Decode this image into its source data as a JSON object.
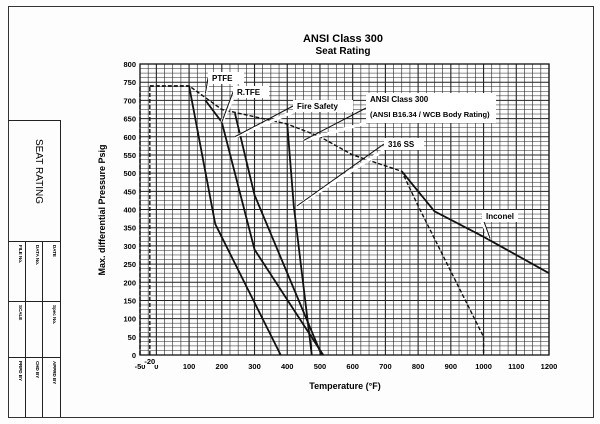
{
  "title_block": {
    "title": "SEAT RATING",
    "fields": [
      "DATE",
      "DATA No.",
      "FILE No.",
      "Spec No.",
      "SCALE",
      "APPRD BY",
      "CHD BY",
      "PRPD BY"
    ]
  },
  "chart_data": {
    "type": "line",
    "title": "ANSI Class 300",
    "subtitle": "Seat Rating",
    "xlabel": "Temperature (°F)",
    "ylabel": "Max. differential Pressure Psig",
    "xlim": [
      -50,
      1200
    ],
    "ylim": [
      0,
      800
    ],
    "xticks": [
      -50,
      0,
      100,
      200,
      300,
      400,
      500,
      600,
      700,
      800,
      900,
      1000,
      1100,
      1200
    ],
    "yticks": [
      0,
      50,
      100,
      150,
      200,
      250,
      300,
      350,
      400,
      450,
      500,
      550,
      600,
      650,
      700,
      750,
      800
    ],
    "grid": true,
    "extra_tick_label": "-20",
    "series": [
      {
        "name": "PTFE",
        "style": "solid",
        "points": [
          [
            100,
            740
          ],
          [
            180,
            360
          ],
          [
            380,
            0
          ]
        ]
      },
      {
        "name": "R.TFE",
        "style": "solid",
        "points": [
          [
            150,
            700
          ],
          [
            200,
            640
          ],
          [
            300,
            290
          ],
          [
            510,
            0
          ]
        ]
      },
      {
        "name": "Fire Safety",
        "style": "solid",
        "points": [
          [
            240,
            665
          ],
          [
            300,
            440
          ],
          [
            505,
            0
          ]
        ]
      },
      {
        "name": "316 SS",
        "style": "solid",
        "points": [
          [
            400,
            635
          ],
          [
            420,
            410
          ],
          [
            475,
            0
          ]
        ]
      },
      {
        "name": "ANSI Class 300",
        "label2": "(ANSI B16.34 / WCB Body Rating)",
        "style": "dashed",
        "points": [
          [
            -20,
            740
          ],
          [
            100,
            740
          ],
          [
            200,
            675
          ],
          [
            300,
            655
          ],
          [
            400,
            635
          ],
          [
            500,
            600
          ],
          [
            600,
            550
          ],
          [
            650,
            535
          ],
          [
            700,
            520
          ],
          [
            750,
            505
          ],
          [
            800,
            410
          ],
          [
            850,
            320
          ],
          [
            900,
            230
          ],
          [
            950,
            140
          ],
          [
            1000,
            50
          ],
          [
            1000,
            0
          ]
        ]
      },
      {
        "name": "Inconel",
        "style": "solid",
        "points": [
          [
            750,
            505
          ],
          [
            850,
            395
          ],
          [
            1000,
            325
          ],
          [
            1200,
            225
          ]
        ]
      },
      {
        "name": "",
        "style": "dashed",
        "points": [
          [
            -50,
            0
          ],
          [
            -50,
            740
          ]
        ]
      },
      {
        "name": "",
        "style": "dashed",
        "points": [
          [
            -20,
            0
          ],
          [
            -20,
            740
          ]
        ]
      }
    ]
  }
}
